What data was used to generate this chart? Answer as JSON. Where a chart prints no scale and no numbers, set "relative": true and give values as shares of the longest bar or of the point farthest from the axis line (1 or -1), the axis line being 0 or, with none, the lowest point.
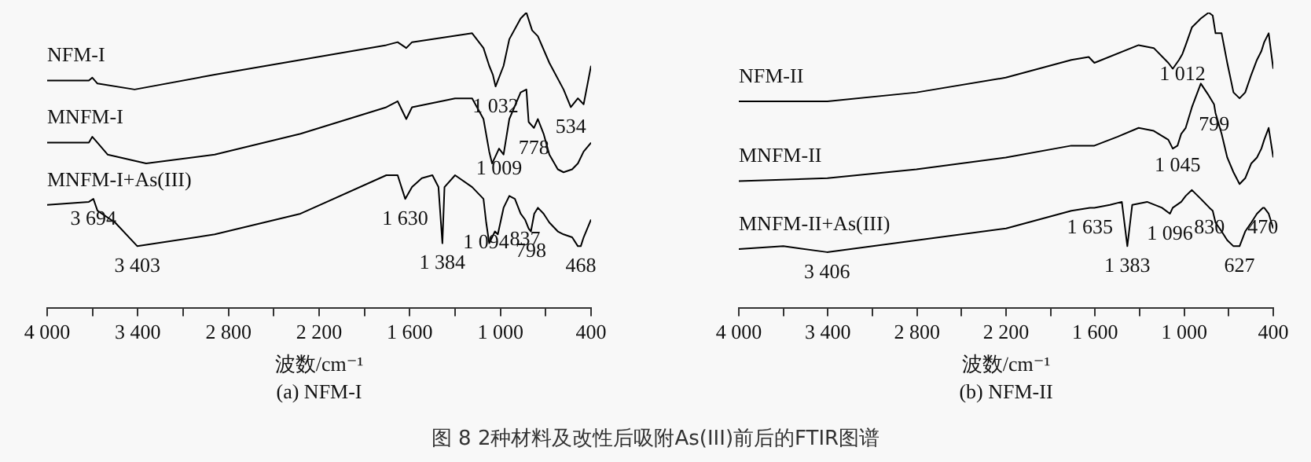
{
  "chart_data": [
    {
      "type": "line",
      "title": "(a) NFM-I",
      "xlabel": "波数/cm⁻¹",
      "relative": true,
      "legend": false,
      "grid": false,
      "marker": "none",
      "line_style": "solid",
      "xlim": [
        4000,
        400
      ],
      "xticks": [
        {
          "value": 4000,
          "label": "4 000"
        },
        {
          "value": 3700,
          "label": null
        },
        {
          "value": 3400,
          "label": "3 400"
        },
        {
          "value": 3100,
          "label": null
        },
        {
          "value": 2800,
          "label": "2 800"
        },
        {
          "value": 2500,
          "label": null
        },
        {
          "value": 2200,
          "label": "2 200"
        },
        {
          "value": 1900,
          "label": null
        },
        {
          "value": 1600,
          "label": "1 600"
        },
        {
          "value": 1300,
          "label": null
        },
        {
          "value": 1000,
          "label": "1 000"
        },
        {
          "value": 700,
          "label": null
        },
        400
      ],
      "series": [
        {
          "name": "NFM-I",
          "color": "#000000",
          "x": [
            4000,
            3724,
            3701,
            3667,
            3421,
            2891,
            2323,
            1755,
            1680,
            1623,
            1585,
            1187,
            1112,
            1074,
            1050,
            1032,
            979,
            941,
            866,
            828,
            790,
            752,
            676,
            582,
            534,
            487,
            449,
            400
          ],
          "values": [
            0.77,
            0.77,
            0.78,
            0.76,
            0.74,
            0.79,
            0.84,
            0.89,
            0.9,
            0.88,
            0.9,
            0.93,
            0.88,
            0.82,
            0.79,
            0.75,
            0.82,
            0.91,
            0.98,
            1,
            0.94,
            0.92,
            0.83,
            0.74,
            0.68,
            0.71,
            0.69,
            0.82
          ]
        },
        {
          "name": "MNFM-I",
          "color": "#000000",
          "x": [
            4000,
            3724,
            3701,
            3667,
            3600,
            3345,
            2891,
            2323,
            1755,
            1680,
            1623,
            1585,
            1300,
            1187,
            1112,
            1074,
            1055,
            1036,
            1009,
            979,
            941,
            866,
            828,
            813,
            778,
            752,
            714,
            676,
            620,
            582,
            525,
            487,
            449,
            400
          ],
          "values": [
            0.56,
            0.56,
            0.58,
            0.56,
            0.52,
            0.49,
            0.52,
            0.59,
            0.68,
            0.7,
            0.64,
            0.68,
            0.71,
            0.71,
            0.64,
            0.53,
            0.49,
            0.51,
            0.54,
            0.52,
            0.64,
            0.73,
            0.74,
            0.63,
            0.61,
            0.64,
            0.59,
            0.52,
            0.47,
            0.46,
            0.47,
            0.49,
            0.53,
            0.56
          ]
        },
        {
          "name": "MNFM-I+As(III)",
          "color": "#000000",
          "x": [
            4000,
            3724,
            3694,
            3667,
            3550,
            3403,
            2891,
            2323,
            1755,
            1680,
            1630,
            1585,
            1520,
            1450,
            1410,
            1384,
            1370,
            1300,
            1187,
            1112,
            1094,
            1074,
            1036,
            1017,
            979,
            941,
            904,
            866,
            837,
            813,
            798,
            776,
            752,
            714,
            676,
            620,
            582,
            525,
            487,
            468,
            449,
            400
          ],
          "values": [
            0.35,
            0.36,
            0.37,
            0.33,
            0.29,
            0.21,
            0.25,
            0.32,
            0.45,
            0.45,
            0.37,
            0.41,
            0.44,
            0.45,
            0.41,
            0.22,
            0.41,
            0.45,
            0.41,
            0.37,
            0.29,
            0.22,
            0.26,
            0.25,
            0.34,
            0.38,
            0.37,
            0.32,
            0.3,
            0.27,
            0.26,
            0.32,
            0.34,
            0.32,
            0.29,
            0.26,
            0.25,
            0.24,
            0.21,
            0.21,
            0.24,
            0.3
          ]
        }
      ],
      "annotations": [
        {
          "text": "1 032",
          "x": 1032,
          "y": 0.75
        },
        {
          "text": "534",
          "x": 534,
          "y": 0.68
        },
        {
          "text": "778",
          "x": 778,
          "y": 0.61
        },
        {
          "text": "1 009",
          "x": 1009,
          "y": 0.54
        },
        {
          "text": "1 630",
          "x": 1630,
          "y": 0.37
        },
        {
          "text": "3 694",
          "x": 3694,
          "y": 0.37
        },
        {
          "text": "3 403",
          "x": 3403,
          "y": 0.21
        },
        {
          "text": "1 384",
          "x": 1384,
          "y": 0.22
        },
        {
          "text": "1 094",
          "x": 1094,
          "y": 0.29
        },
        {
          "text": "837",
          "x": 837,
          "y": 0.3
        },
        {
          "text": "798",
          "x": 798,
          "y": 0.26
        },
        {
          "text": "468",
          "x": 468,
          "y": 0.21
        },
        "图 8  2种材料及改性后吸附As(III)前后的FTIR图谱"
      ]
    },
    {
      "type": "line",
      "title": "(b) NFM-II",
      "xlabel": "波数/cm⁻¹",
      "relative": true,
      "legend": false,
      "grid": false,
      "marker": "none",
      "line_style": "solid",
      "xlim": [
        4000,
        400
      ],
      "xticks": [
        {
          "value": 4000,
          "label": "4 000"
        },
        {
          "value": 3700,
          "label": null
        },
        {
          "value": 3400,
          "label": "3 400"
        },
        {
          "value": 3100,
          "label": null
        },
        {
          "value": 2800,
          "label": "2 800"
        },
        {
          "value": 2500,
          "label": null
        },
        {
          "value": 2200,
          "label": "2 200"
        },
        {
          "value": 1900,
          "label": null
        },
        {
          "value": 1600,
          "label": "1 600"
        },
        {
          "value": 1300,
          "label": null
        },
        {
          "value": 1000,
          "label": "1 000"
        },
        {
          "value": 700,
          "label": null
        },
        400
      ],
      "series": [
        {
          "name": "NFM-II",
          "color": "#000000",
          "x": [
            4000,
            3403,
            2803,
            2202,
            1760,
            1643,
            1605,
            1307,
            1205,
            1107,
            1077,
            1035,
            1012,
            990,
            948,
            888,
            835,
            808,
            789,
            748,
            710,
            668,
            627,
            589,
            548,
            510,
            480,
            461,
            431,
            400
          ],
          "values": [
            0.7,
            0.7,
            0.73,
            0.78,
            0.84,
            0.85,
            0.83,
            0.89,
            0.88,
            0.83,
            0.81,
            0.84,
            0.86,
            0.89,
            0.95,
            0.98,
            1,
            0.99,
            0.93,
            0.93,
            0.83,
            0.73,
            0.71,
            0.73,
            0.79,
            0.84,
            0.87,
            0.9,
            0.93,
            0.81
          ]
        },
        {
          "name": "MNFM-II",
          "color": "#000000",
          "x": [
            4000,
            3403,
            2803,
            2202,
            1760,
            1643,
            1605,
            1450,
            1307,
            1205,
            1107,
            1077,
            1045,
            1020,
            990,
            948,
            888,
            835,
            799,
            789,
            748,
            710,
            668,
            627,
            589,
            548,
            510,
            480,
            461,
            431,
            400
          ],
          "values": [
            0.43,
            0.44,
            0.47,
            0.51,
            0.55,
            0.55,
            0.55,
            0.58,
            0.61,
            0.6,
            0.57,
            0.54,
            0.55,
            0.59,
            0.61,
            0.68,
            0.76,
            0.72,
            0.69,
            0.66,
            0.59,
            0.51,
            0.46,
            0.42,
            0.44,
            0.49,
            0.51,
            0.54,
            0.57,
            0.61,
            0.51
          ]
        },
        {
          "name": "MNFM-II+As(III)",
          "color": "#000000",
          "x": [
            4000,
            3700,
            3406,
            2800,
            2200,
            1760,
            1635,
            1605,
            1500,
            1420,
            1383,
            1350,
            1250,
            1150,
            1096,
            1077,
            1020,
            990,
            948,
            888,
            830,
            808,
            789,
            748,
            710,
            668,
            627,
            589,
            548,
            510,
            470,
            461,
            431,
            400
          ],
          "values": [
            0.2,
            0.21,
            0.19,
            0.23,
            0.27,
            0.33,
            0.34,
            0.34,
            0.35,
            0.36,
            0.21,
            0.35,
            0.36,
            0.34,
            0.32,
            0.34,
            0.36,
            0.38,
            0.4,
            0.37,
            0.34,
            0.33,
            0.29,
            0.26,
            0.23,
            0.21,
            0.21,
            0.26,
            0.29,
            0.32,
            0.34,
            0.34,
            0.32,
            0.27
          ]
        }
      ],
      "annotations": [
        {
          "text": "1 012",
          "x": 1012,
          "y": 0.86
        },
        {
          "text": "799",
          "x": 799,
          "y": 0.69
        },
        {
          "text": "1 045",
          "x": 1045,
          "y": 0.55
        },
        {
          "text": "1 635",
          "x": 1635,
          "y": 0.34
        },
        {
          "text": "1 383",
          "x": 1383,
          "y": 0.21
        },
        {
          "text": "1 096",
          "x": 1096,
          "y": 0.32
        },
        {
          "text": "830",
          "x": 830,
          "y": 0.34
        },
        {
          "text": "627",
          "x": 627,
          "y": 0.21
        },
        {
          "text": "470",
          "x": 470,
          "y": 0.34
        },
        {
          "text": "3 406",
          "x": 3406,
          "y": 0.19
        }
      ]
    }
  ]
}
